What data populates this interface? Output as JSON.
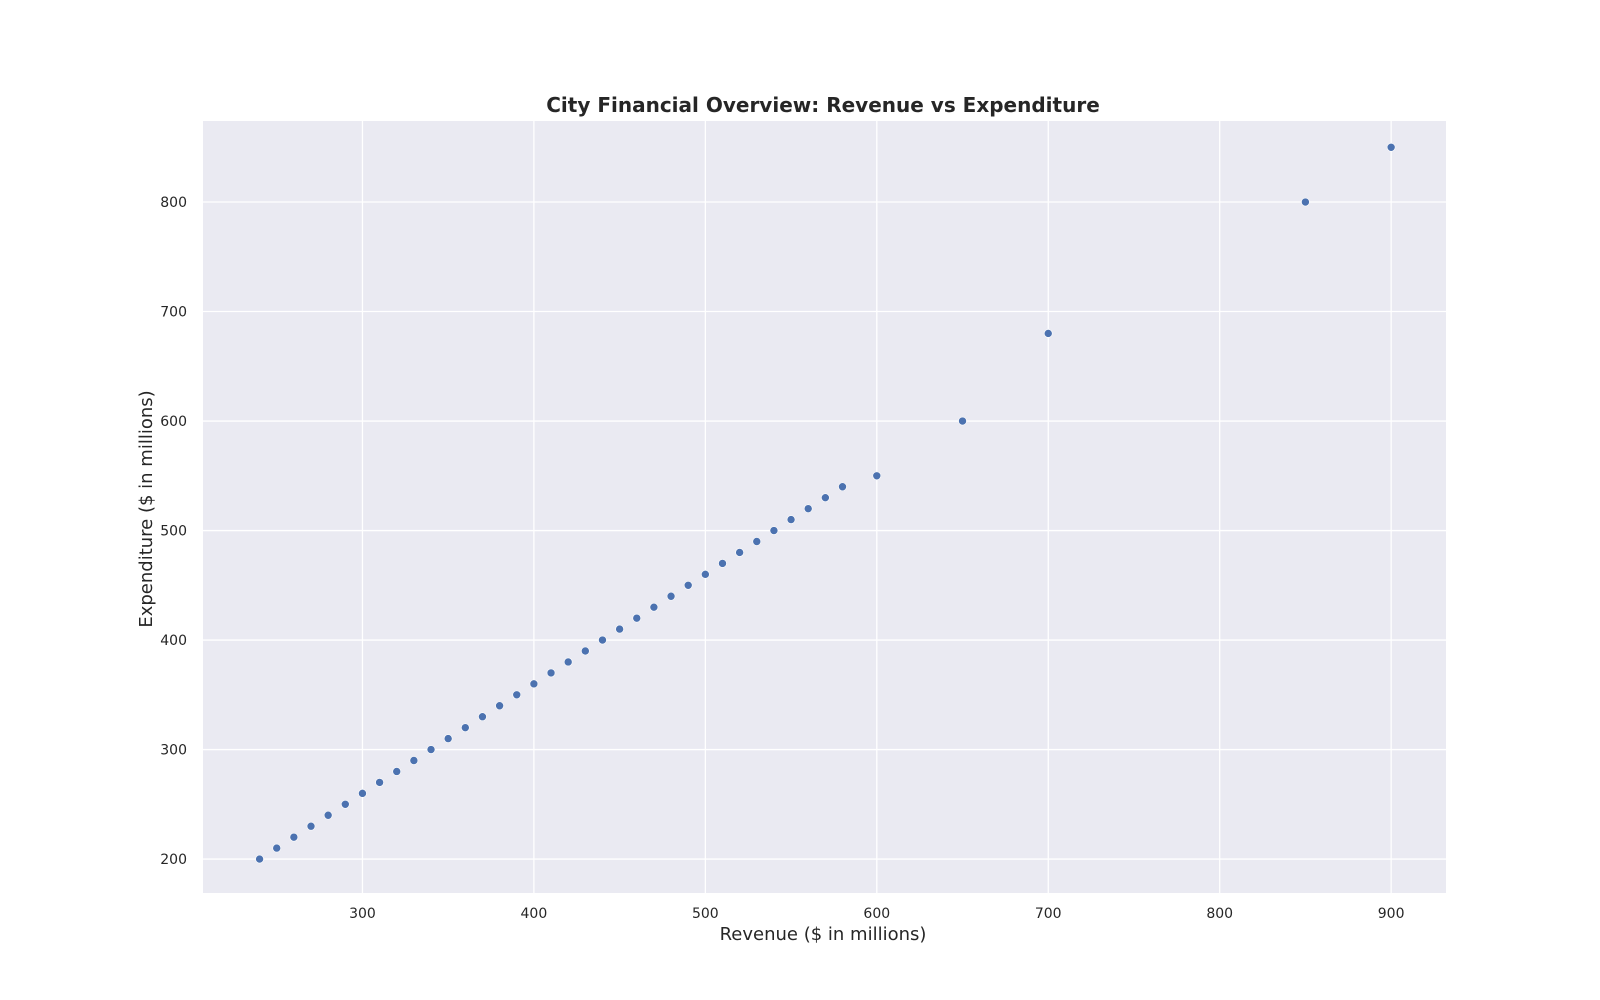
{
  "chart_data": {
    "type": "scatter",
    "title": "City Financial Overview: Revenue vs Expenditure",
    "xlabel": "Revenue ($ in millions)",
    "ylabel": "Expenditure ($ in millions)",
    "xlim": [
      207,
      932
    ],
    "ylim": [
      169,
      874
    ],
    "xticks": [
      300,
      400,
      500,
      600,
      700,
      800,
      900
    ],
    "yticks": [
      200,
      300,
      400,
      500,
      600,
      700,
      800
    ],
    "grid": true,
    "colors": {
      "background": "#eaeaf2",
      "grid": "#ffffff",
      "point": "#4c72b0"
    },
    "x": [
      240,
      250,
      260,
      270,
      280,
      290,
      300,
      310,
      320,
      330,
      340,
      350,
      360,
      370,
      380,
      390,
      400,
      410,
      420,
      430,
      440,
      450,
      460,
      470,
      480,
      490,
      500,
      510,
      520,
      530,
      540,
      550,
      560,
      570,
      580,
      600,
      650,
      700,
      850,
      900
    ],
    "y": [
      200,
      210,
      220,
      230,
      240,
      250,
      260,
      270,
      280,
      290,
      300,
      310,
      320,
      330,
      340,
      350,
      360,
      370,
      380,
      390,
      400,
      410,
      420,
      430,
      440,
      450,
      460,
      470,
      480,
      490,
      500,
      510,
      520,
      530,
      540,
      550,
      600,
      680,
      800,
      850
    ]
  }
}
